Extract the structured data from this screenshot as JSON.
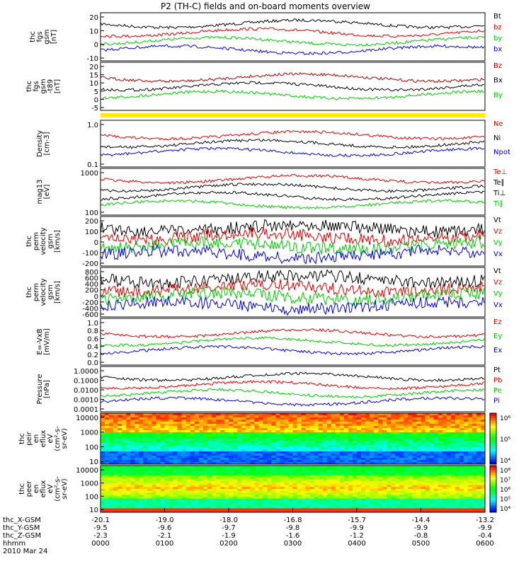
{
  "title": "P2 (TH-C) fields and on-board moments overview",
  "panels": [
    {
      "ylabel": [
        "thc",
        "fgs",
        "gsm",
        "[nT]"
      ],
      "ticks": [
        "20",
        "10",
        "0",
        "-10"
      ],
      "legend": [
        {
          "t": "Bt",
          "c": "#000000"
        },
        {
          "t": "bz",
          "c": "#e00000"
        },
        {
          "t": "by",
          "c": "#00cc00"
        },
        {
          "t": "bx",
          "c": "#0000dd"
        }
      ]
    },
    {
      "ylabel": [
        "thc",
        "fgs",
        "gsm",
        "-t89",
        "[nT]"
      ],
      "ticks": [
        "20",
        "15",
        "10",
        "5",
        "0",
        "-5"
      ],
      "legend": [
        {
          "t": "Bz",
          "c": "#aa0000"
        },
        {
          "t": "Bx",
          "c": "#000000"
        },
        {
          "t": "By",
          "c": "#00cc00"
        }
      ]
    },
    {
      "ylabel": [
        "Density",
        "[cm-3]"
      ],
      "ticks": [
        "1.0",
        "0.1"
      ],
      "legend": [
        {
          "t": "Ne",
          "c": "#e00000"
        },
        {
          "t": "Ni",
          "c": "#000000"
        },
        {
          "t": "Npot",
          "c": "#0000dd"
        }
      ]
    },
    {
      "ylabel": [
        "mag13",
        "[eV]"
      ],
      "ticks": [
        "1000",
        "100"
      ],
      "legend": [
        {
          "t": "Te⊥",
          "c": "#e00000"
        },
        {
          "t": "Te∥",
          "c": "#000000"
        },
        {
          "t": "Ti⊥",
          "c": "#000000"
        },
        {
          "t": "Ti∥",
          "c": "#00cc00"
        }
      ]
    },
    {
      "ylabel": [
        "thc",
        "perm",
        "velocity",
        "gsm",
        "[km/s]"
      ],
      "ticks": [
        "200",
        "100",
        "0",
        "-100",
        "-200"
      ],
      "legend": [
        {
          "t": "Vt",
          "c": "#000000"
        },
        {
          "t": "Vz",
          "c": "#e00000"
        },
        {
          "t": "Vy",
          "c": "#00cc00"
        },
        {
          "t": "Vx",
          "c": "#0000dd"
        }
      ]
    },
    {
      "ylabel": [
        "thc",
        "perm",
        "velocity",
        "gsm",
        "[km/s]"
      ],
      "ticks": [
        "800",
        "600",
        "400",
        "200",
        "0",
        "-200",
        "-400",
        "-600"
      ],
      "legend": [
        {
          "t": "Vt",
          "c": "#000000"
        },
        {
          "t": "Vz",
          "c": "#e00000"
        },
        {
          "t": "Vy",
          "c": "#00cc00"
        },
        {
          "t": "Vx",
          "c": "#0000dd"
        }
      ]
    },
    {
      "ylabel": [
        "E=-VxB",
        "[mV/m]"
      ],
      "ticks": [
        "1.0",
        "0.8",
        "0.6",
        "0.4",
        "0.2",
        "0.0"
      ],
      "legend": [
        {
          "t": "Ez",
          "c": "#e00000"
        },
        {
          "t": "Ey",
          "c": "#00cc00"
        },
        {
          "t": "Ex",
          "c": "#0000dd"
        }
      ]
    },
    {
      "ylabel": [
        "Pressure",
        "[nPa]"
      ],
      "ticks": [
        "1.0000",
        "0.1000",
        "0.0100",
        "0.0010",
        "0.0001"
      ],
      "legend": [
        {
          "t": "Pt",
          "c": "#000000"
        },
        {
          "t": "Pb",
          "c": "#e00000"
        },
        {
          "t": "Pe",
          "c": "#00cc00"
        },
        {
          "t": "Pi",
          "c": "#0000dd"
        }
      ]
    },
    {
      "ylabel": [
        "thc",
        "peir",
        "en",
        "eflux",
        "eV",
        "(cm²-s-",
        "sr-eV)"
      ],
      "ticks": [
        "10000",
        "1000",
        "100",
        "10"
      ],
      "colorbar": [
        "10⁶",
        "10⁵",
        "10⁴"
      ]
    },
    {
      "ylabel": [
        "thc",
        "peer",
        "en",
        "eflux",
        "eV",
        "(cm²-s-",
        "sr-eV)"
      ],
      "ticks": [
        "10000",
        "1000",
        "100",
        "10"
      ],
      "colorbar": [
        "10⁸",
        "10⁷",
        "10⁶",
        "10⁵",
        "10⁴"
      ]
    }
  ],
  "xaxis": {
    "rows": [
      {
        "label": "thc_X-GSM",
        "values": [
          "-20.1",
          "-19.0",
          "-18.0",
          "-16.8",
          "-15.7",
          "-14.4",
          "-13.2"
        ]
      },
      {
        "label": "thc_Y-GSM",
        "values": [
          "-9.5",
          "-9.6",
          "-9.7",
          "-9.8",
          "-9.9",
          "-9.9",
          "-9.9"
        ]
      },
      {
        "label": "thc_Z-GSM",
        "values": [
          "-2.3",
          "-2.1",
          "-1.9",
          "-1.6",
          "-1.2",
          "-0.8",
          "-0.4"
        ]
      },
      {
        "label": "hhmm",
        "values": [
          "0000",
          "0100",
          "0200",
          "0300",
          "0400",
          "0500",
          "0600"
        ]
      }
    ],
    "date": "2010 Mar 24"
  }
}
